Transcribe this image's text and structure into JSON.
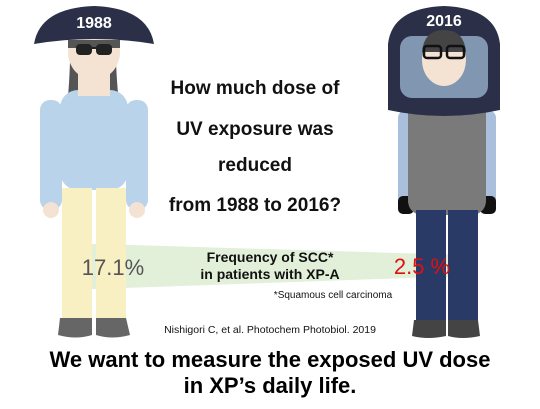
{
  "left_figure": {
    "year": "1988"
  },
  "right_figure": {
    "year": "2016"
  },
  "question": {
    "lines": [
      "How much dose of",
      "UV exposure was",
      "reduced",
      "from 1988 to 2016?"
    ]
  },
  "comparison": {
    "left_value": "17.1%",
    "label_lines": [
      "Frequency of SCC*",
      "in patients with XP-A"
    ],
    "right_value": "2.5 %",
    "footnote": "*Squamous cell carcinoma"
  },
  "citation": "Nishigori C, et al. Photochem Photobiol. 2019",
  "conclusion": {
    "lines": [
      "We want to measure the exposed UV dose",
      "in XP’s daily life."
    ]
  }
}
